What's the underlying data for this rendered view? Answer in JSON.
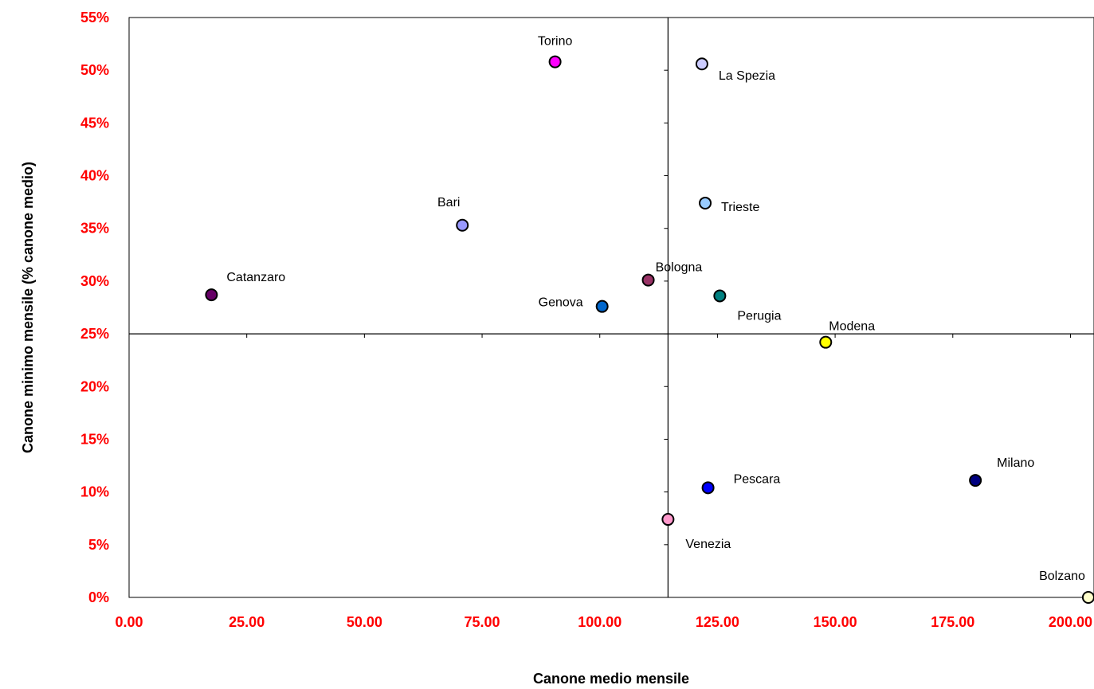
{
  "chart_data": {
    "type": "scatter",
    "xlabel": "Canone medio mensile",
    "ylabel": "Canone minimo mensile  (% canone medio)",
    "xlim": [
      0,
      205
    ],
    "ylim": [
      0,
      55
    ],
    "x_ticks": [
      "0.00",
      "25.00",
      "50.00",
      "75.00",
      "100.00",
      "125.00",
      "150.00",
      "175.00",
      "200.00"
    ],
    "y_ticks": [
      "0%",
      "5%",
      "10%",
      "15%",
      "20%",
      "25%",
      "30%",
      "35%",
      "40%",
      "45%",
      "50%",
      "55%"
    ],
    "crosshair": {
      "x": 114.5,
      "y": 25
    },
    "grid": false,
    "legend": "none",
    "points": [
      {
        "name": "Torino",
        "x": 90.5,
        "y": 50.8,
        "color": "#ff00ff"
      },
      {
        "name": "La Spezia",
        "x": 121.7,
        "y": 50.6,
        "color": "#ccccff"
      },
      {
        "name": "Trieste",
        "x": 122.4,
        "y": 37.4,
        "color": "#99ccff"
      },
      {
        "name": "Bari",
        "x": 70.8,
        "y": 35.3,
        "color": "#9999ff"
      },
      {
        "name": "Bologna",
        "x": 110.3,
        "y": 30.1,
        "color": "#993366"
      },
      {
        "name": "Catanzaro",
        "x": 17.5,
        "y": 28.7,
        "color": "#660066"
      },
      {
        "name": "Perugia",
        "x": 125.5,
        "y": 28.6,
        "color": "#008080"
      },
      {
        "name": "Genova",
        "x": 100.5,
        "y": 27.6,
        "color": "#0066cc"
      },
      {
        "name": "Modena",
        "x": 148.0,
        "y": 24.2,
        "color": "#ffff00"
      },
      {
        "name": "Milano",
        "x": 179.8,
        "y": 11.1,
        "color": "#000080"
      },
      {
        "name": "Pescara",
        "x": 123.0,
        "y": 10.4,
        "color": "#0000ff"
      },
      {
        "name": "Venezia",
        "x": 114.5,
        "y": 7.4,
        "color": "#ff99cc"
      },
      {
        "name": "Bolzano",
        "x": 203.8,
        "y": 0.0,
        "color": "#ffffcc"
      }
    ]
  }
}
